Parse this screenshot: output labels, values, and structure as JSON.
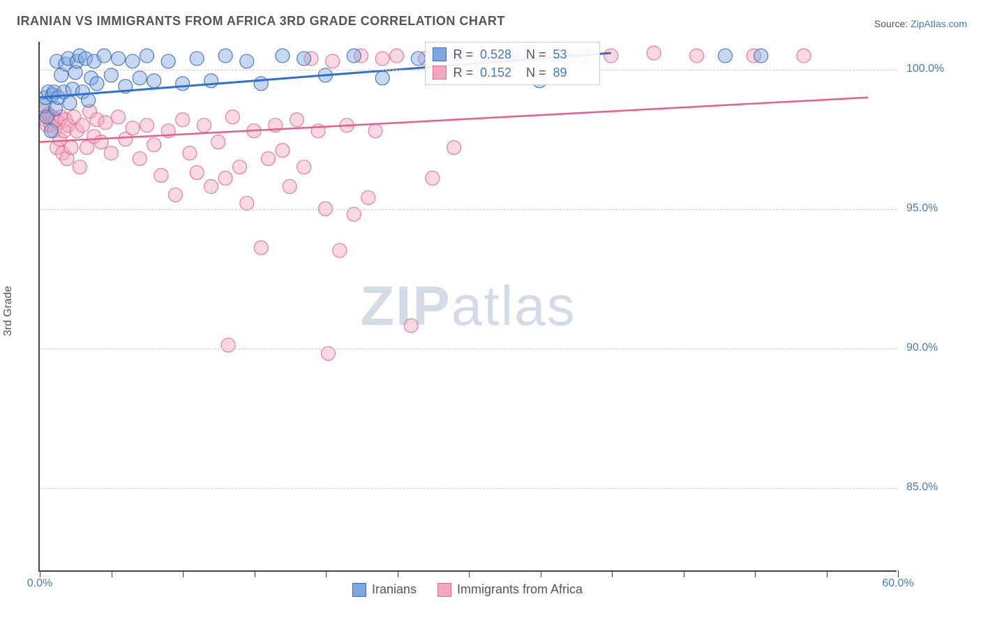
{
  "title": "IRANIAN VS IMMIGRANTS FROM AFRICA 3RD GRADE CORRELATION CHART",
  "source_label": "Source: ",
  "source_link": "ZipAtlas.com",
  "ylabel": "3rd Grade",
  "watermark_bold": "ZIP",
  "watermark_rest": "atlas",
  "chart": {
    "type": "scatter",
    "xlim": [
      0,
      60
    ],
    "ylim": [
      82,
      101
    ],
    "xticks": [
      0,
      5,
      10,
      15,
      20,
      25,
      30,
      35,
      40,
      45,
      50,
      55,
      60
    ],
    "xtick_labels": {
      "0": "0.0%",
      "60": "60.0%"
    },
    "yticks": [
      85,
      90,
      95,
      100
    ],
    "ytick_labels": [
      "85.0%",
      "90.0%",
      "95.0%",
      "100.0%"
    ],
    "grid_color": "#cccccc",
    "background_color": "#ffffff",
    "marker_radius": 10,
    "marker_opacity": 0.45,
    "series": [
      {
        "name": "Iranians",
        "color_fill": "#7ea6e0",
        "color_stroke": "#3d6db5",
        "line_color": "#2f6fd0",
        "line_width": 3,
        "R": "0.528",
        "N": "53",
        "trend": {
          "x1": 0,
          "y1": 99.0,
          "x2": 40,
          "y2": 100.6
        },
        "points": [
          [
            0.3,
            98.7
          ],
          [
            0.4,
            99.0
          ],
          [
            0.5,
            98.3
          ],
          [
            0.6,
            99.2
          ],
          [
            0.8,
            97.8
          ],
          [
            0.9,
            99.1
          ],
          [
            1.0,
            99.2
          ],
          [
            1.1,
            98.6
          ],
          [
            1.2,
            100.3
          ],
          [
            1.3,
            99.0
          ],
          [
            1.5,
            99.8
          ],
          [
            1.7,
            99.2
          ],
          [
            1.8,
            100.2
          ],
          [
            2.0,
            100.4
          ],
          [
            2.1,
            98.8
          ],
          [
            2.3,
            99.3
          ],
          [
            2.5,
            99.9
          ],
          [
            2.6,
            100.3
          ],
          [
            2.8,
            100.5
          ],
          [
            3.0,
            99.2
          ],
          [
            3.2,
            100.4
          ],
          [
            3.4,
            98.9
          ],
          [
            3.6,
            99.7
          ],
          [
            3.8,
            100.3
          ],
          [
            4.0,
            99.5
          ],
          [
            4.5,
            100.5
          ],
          [
            5.0,
            99.8
          ],
          [
            5.5,
            100.4
          ],
          [
            6.0,
            99.4
          ],
          [
            6.5,
            100.3
          ],
          [
            7.0,
            99.7
          ],
          [
            7.5,
            100.5
          ],
          [
            8.0,
            99.6
          ],
          [
            9.0,
            100.3
          ],
          [
            10.0,
            99.5
          ],
          [
            11.0,
            100.4
          ],
          [
            12.0,
            99.6
          ],
          [
            13.0,
            100.5
          ],
          [
            14.5,
            100.3
          ],
          [
            15.5,
            99.5
          ],
          [
            17.0,
            100.5
          ],
          [
            18.5,
            100.4
          ],
          [
            20.0,
            99.8
          ],
          [
            22.0,
            100.5
          ],
          [
            24.0,
            99.7
          ],
          [
            26.5,
            100.4
          ],
          [
            29.0,
            100.5
          ],
          [
            31.0,
            100.3
          ],
          [
            33.0,
            100.5
          ],
          [
            35.0,
            99.6
          ],
          [
            37.0,
            100.4
          ],
          [
            48.0,
            100.5
          ],
          [
            50.5,
            100.5
          ]
        ]
      },
      {
        "name": "Immigrants from Africa",
        "color_fill": "#f5a8bd",
        "color_stroke": "#e26f93",
        "line_color": "#e85d8e",
        "line_width": 2.5,
        "R": "0.152",
        "N": "89",
        "trend": {
          "x1": 0,
          "y1": 97.4,
          "x2": 58,
          "y2": 99.0
        },
        "points": [
          [
            0.3,
            98.5
          ],
          [
            0.4,
            98.2
          ],
          [
            0.5,
            98.0
          ],
          [
            0.6,
            98.4
          ],
          [
            0.7,
            98.3
          ],
          [
            0.8,
            98.0
          ],
          [
            0.9,
            98.3
          ],
          [
            1.0,
            97.8
          ],
          [
            1.1,
            98.2
          ],
          [
            1.2,
            97.2
          ],
          [
            1.3,
            98.1
          ],
          [
            1.4,
            97.5
          ],
          [
            1.5,
            98.3
          ],
          [
            1.6,
            97.0
          ],
          [
            1.7,
            97.8
          ],
          [
            1.8,
            98.2
          ],
          [
            1.9,
            96.8
          ],
          [
            2.0,
            98.0
          ],
          [
            2.2,
            97.2
          ],
          [
            2.4,
            98.3
          ],
          [
            2.6,
            97.8
          ],
          [
            2.8,
            96.5
          ],
          [
            3.0,
            98.0
          ],
          [
            3.3,
            97.2
          ],
          [
            3.5,
            98.5
          ],
          [
            3.8,
            97.6
          ],
          [
            4.0,
            98.2
          ],
          [
            4.3,
            97.4
          ],
          [
            4.6,
            98.1
          ],
          [
            5.0,
            97.0
          ],
          [
            5.5,
            98.3
          ],
          [
            6.0,
            97.5
          ],
          [
            6.5,
            97.9
          ],
          [
            7.0,
            96.8
          ],
          [
            7.5,
            98.0
          ],
          [
            8.0,
            97.3
          ],
          [
            8.5,
            96.2
          ],
          [
            9.0,
            97.8
          ],
          [
            9.5,
            95.5
          ],
          [
            10.0,
            98.2
          ],
          [
            10.5,
            97.0
          ],
          [
            11.0,
            96.3
          ],
          [
            11.5,
            98.0
          ],
          [
            12.0,
            95.8
          ],
          [
            12.5,
            97.4
          ],
          [
            13.0,
            96.1
          ],
          [
            13.2,
            90.1
          ],
          [
            13.5,
            98.3
          ],
          [
            14.0,
            96.5
          ],
          [
            14.5,
            95.2
          ],
          [
            15.0,
            97.8
          ],
          [
            15.5,
            93.6
          ],
          [
            16.0,
            96.8
          ],
          [
            16.5,
            98.0
          ],
          [
            17.0,
            97.1
          ],
          [
            17.5,
            95.8
          ],
          [
            18.0,
            98.2
          ],
          [
            18.5,
            96.5
          ],
          [
            19.0,
            100.4
          ],
          [
            19.5,
            97.8
          ],
          [
            20.0,
            95.0
          ],
          [
            20.2,
            89.8
          ],
          [
            20.5,
            100.3
          ],
          [
            21.0,
            93.5
          ],
          [
            21.5,
            98.0
          ],
          [
            22.0,
            94.8
          ],
          [
            22.5,
            100.5
          ],
          [
            23.0,
            95.4
          ],
          [
            23.5,
            97.8
          ],
          [
            24.0,
            100.4
          ],
          [
            25.0,
            100.5
          ],
          [
            26.0,
            90.8
          ],
          [
            27.0,
            100.4
          ],
          [
            27.5,
            96.1
          ],
          [
            28.0,
            100.5
          ],
          [
            29.0,
            97.2
          ],
          [
            30.0,
            100.4
          ],
          [
            31.0,
            99.8
          ],
          [
            32.0,
            100.5
          ],
          [
            33.0,
            100.3
          ],
          [
            34.0,
            100.6
          ],
          [
            35.0,
            100.4
          ],
          [
            36.0,
            100.5
          ],
          [
            38.0,
            100.5
          ],
          [
            40.0,
            100.5
          ],
          [
            43.0,
            100.6
          ],
          [
            46.0,
            100.5
          ],
          [
            50.0,
            100.5
          ],
          [
            53.5,
            100.5
          ]
        ]
      }
    ],
    "stats_box": {
      "left_pct": 45,
      "top_pct": 0
    }
  },
  "legend": {
    "r_label": "R =",
    "n_label": "N ="
  }
}
